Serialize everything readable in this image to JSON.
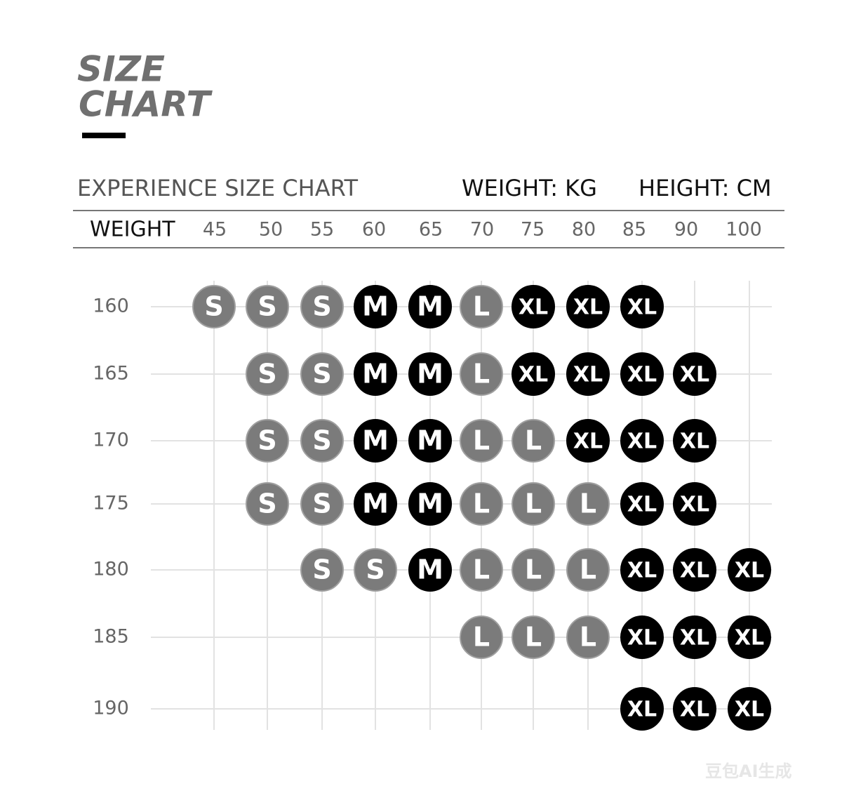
{
  "header": {
    "title_lines": [
      "SIZE",
      "CHART"
    ],
    "subtitle": "EXPERIENCE SIZE CHART",
    "units": [
      "WEIGHT: KG",
      "HEIGHT: CM"
    ]
  },
  "table": {
    "weight_label": "WEIGHT",
    "weights": [
      "45",
      "50",
      "55",
      "60",
      "65",
      "70",
      "75",
      "80",
      "85",
      "90",
      "100"
    ],
    "rows": [
      {
        "height": "160",
        "sizes": [
          "S",
          "S",
          "S",
          "M",
          "M",
          "L",
          "XL",
          "XL",
          "XL",
          null,
          null
        ]
      },
      {
        "height": "165",
        "sizes": [
          null,
          "S",
          "S",
          "M",
          "M",
          "L",
          "XL",
          "XL",
          "XL",
          "XL",
          null
        ]
      },
      {
        "height": "170",
        "sizes": [
          null,
          "S",
          "S",
          "M",
          "M",
          "L",
          "L",
          "XL",
          "XL",
          "XL",
          null
        ]
      },
      {
        "height": "175",
        "sizes": [
          null,
          "S",
          "S",
          "M",
          "M",
          "L",
          "L",
          "L",
          "XL",
          "XL",
          null
        ]
      },
      {
        "height": "180",
        "sizes": [
          null,
          null,
          "S",
          "S",
          "M",
          "L",
          "L",
          "L",
          "XL",
          "XL",
          "XL"
        ]
      },
      {
        "height": "185",
        "sizes": [
          null,
          null,
          null,
          null,
          null,
          "L",
          "L",
          "L",
          "XL",
          "XL",
          "XL"
        ]
      },
      {
        "height": "190",
        "sizes": [
          null,
          null,
          null,
          null,
          null,
          null,
          null,
          null,
          "XL",
          "XL",
          "XL"
        ]
      }
    ],
    "size_colors": {
      "S": "#7b7b7b",
      "M": "#000000",
      "L": "#7b7b7b",
      "XL": "#000000"
    }
  },
  "watermark": "豆包AI生成"
}
